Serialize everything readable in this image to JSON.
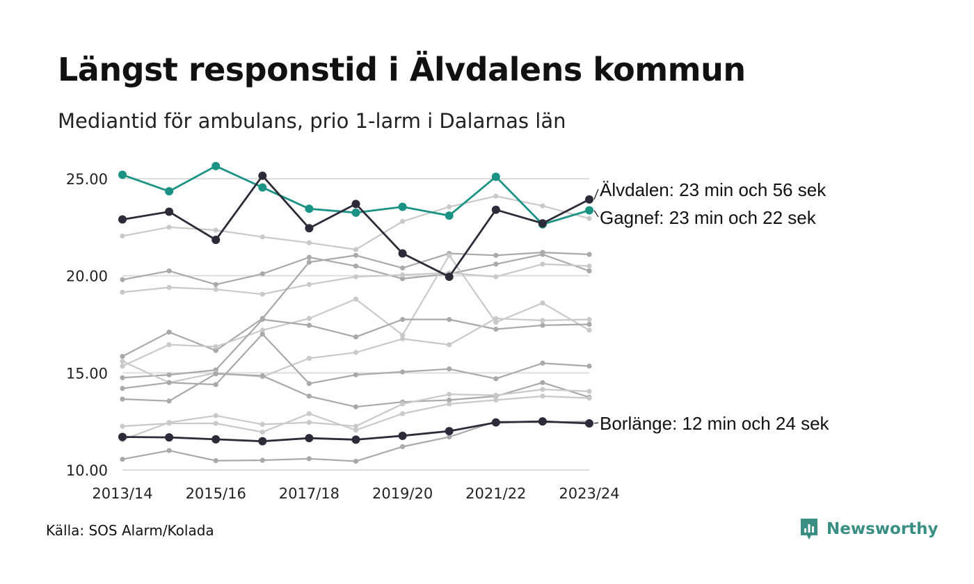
{
  "chart_data": {
    "type": "line",
    "title": "Längst responstid i Älvdalens kommun",
    "subtitle": "Mediantid för ambulans, prio 1-larm i Dalarnas län",
    "source": "Källa: SOS Alarm/Kolada",
    "ylim": [
      10,
      25
    ],
    "yticks": [
      "10.00",
      "15.00",
      "20.00",
      "25.00"
    ],
    "ytick_values": [
      10,
      15,
      20,
      25
    ],
    "x": [
      "2013/14",
      "2014/15",
      "2015/16",
      "2016/17",
      "2017/18",
      "2018/19",
      "2019/20",
      "2020/21",
      "2021/22",
      "2022/23",
      "2023/24"
    ],
    "xtick_labels": [
      "2013/14",
      "2015/16",
      "2017/18",
      "2019/20",
      "2021/22",
      "2023/24"
    ],
    "grid": true,
    "colors": {
      "alvdalen": "#2d2b3a",
      "gagnef": "#1b9384",
      "borlange": "#2d2b3a",
      "other_dark": "#a9a9a9",
      "other_light": "#c9c9c9",
      "grid": "#dddddd"
    },
    "highlight_series": [
      {
        "name": "Älvdalen",
        "label": "Älvdalen: 23 min och 56 sek",
        "color": "#2d2b3a",
        "values": [
          22.9,
          23.3,
          21.85,
          25.15,
          22.45,
          23.7,
          21.15,
          19.95,
          23.4,
          22.7,
          23.93
        ]
      },
      {
        "name": "Gagnef",
        "label": "Gagnef: 23 min och 22 sek",
        "color": "#1b9384",
        "values": [
          25.2,
          24.35,
          25.65,
          24.55,
          23.45,
          23.25,
          23.55,
          23.1,
          25.1,
          22.65,
          23.37
        ]
      },
      {
        "name": "Borlänge",
        "label": "Borlänge: 12 min och 24 sek",
        "color": "#2d2b3a",
        "values": [
          11.7,
          11.68,
          11.58,
          11.48,
          11.64,
          11.56,
          11.76,
          12.0,
          12.45,
          12.5,
          12.4
        ]
      }
    ],
    "other_series": [
      {
        "shade": "light",
        "values": [
          22.05,
          22.5,
          22.35,
          22.0,
          21.7,
          21.35,
          22.8,
          23.55,
          24.1,
          23.6,
          22.95
        ]
      },
      {
        "shade": "dark",
        "values": [
          19.8,
          20.25,
          19.55,
          20.1,
          20.95,
          20.5,
          19.85,
          20.1,
          20.6,
          21.1,
          20.25
        ]
      },
      {
        "shade": "light",
        "values": [
          19.15,
          19.4,
          19.3,
          19.05,
          19.55,
          19.95,
          20.05,
          20.15,
          19.95,
          20.6,
          20.5
        ]
      },
      {
        "shade": "dark",
        "values": [
          15.85,
          17.1,
          16.15,
          17.8,
          20.7,
          21.05,
          20.4,
          21.15,
          21.05,
          21.2,
          21.1
        ]
      },
      {
        "shade": "light",
        "values": [
          15.35,
          16.45,
          16.35,
          17.2,
          17.8,
          18.8,
          16.95,
          21.05,
          17.6,
          18.6,
          17.2
        ]
      },
      {
        "shade": "dark",
        "values": [
          14.75,
          14.9,
          15.15,
          17.75,
          17.45,
          16.85,
          17.75,
          17.75,
          17.25,
          17.45,
          17.5
        ]
      },
      {
        "shade": "light",
        "values": [
          15.6,
          14.5,
          15.0,
          14.8,
          15.75,
          16.05,
          16.75,
          16.45,
          17.8,
          17.7,
          17.75
        ]
      },
      {
        "shade": "dark",
        "values": [
          14.2,
          14.5,
          14.4,
          17.0,
          14.45,
          14.9,
          15.05,
          15.2,
          14.7,
          15.5,
          15.35
        ]
      },
      {
        "shade": "dark",
        "values": [
          13.65,
          13.55,
          14.95,
          14.85,
          13.8,
          13.25,
          13.5,
          13.6,
          13.8,
          14.5,
          13.75
        ]
      },
      {
        "shade": "light",
        "values": [
          11.55,
          12.45,
          12.8,
          12.35,
          12.45,
          12.25,
          13.4,
          13.9,
          13.85,
          14.15,
          14.05
        ]
      },
      {
        "shade": "light",
        "values": [
          12.25,
          12.4,
          12.4,
          11.95,
          12.9,
          12.05,
          12.9,
          13.4,
          13.6,
          13.8,
          13.7
        ]
      },
      {
        "shade": "dark",
        "values": [
          10.55,
          11.0,
          10.48,
          10.5,
          10.58,
          10.45,
          11.2,
          11.7,
          12.5,
          12.45,
          12.5
        ]
      }
    ]
  },
  "brand": {
    "name": "Newsworthy",
    "icon": "newsworthy-logo-icon",
    "color": "#3a8f85"
  }
}
